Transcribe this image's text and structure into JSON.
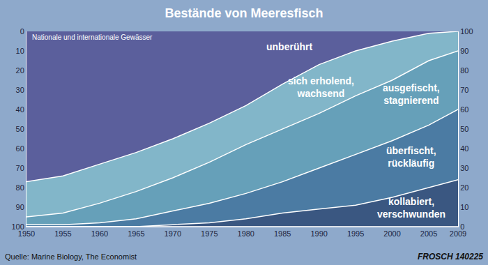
{
  "chart_data": {
    "type": "area",
    "title": "Bestände von Meeresfisch",
    "subtitle": "Nationale und internationale Gewässer",
    "source": "Quelle: Marine Biology, The Economist",
    "credit": "FROSCH 140225",
    "stacked": true,
    "grid": true,
    "x": [
      1950,
      1955,
      1960,
      1965,
      1970,
      1975,
      1980,
      1985,
      1990,
      1995,
      2000,
      2005,
      2009
    ],
    "series": [
      {
        "name": "unberührt",
        "color": "#5b5f9c",
        "values": [
          77,
          74,
          68,
          62,
          55,
          47,
          38,
          27,
          17,
          10,
          5,
          1,
          0
        ]
      },
      {
        "name": "sich erholend, wachsend",
        "color": "#82b6c9",
        "values": [
          18,
          19,
          20,
          20,
          20,
          20,
          20,
          23,
          25,
          23,
          20,
          14,
          10
        ]
      },
      {
        "name": "ausgefischt, stagnierend",
        "color": "#66a0b9",
        "values": [
          4,
          6,
          10,
          14,
          17,
          21,
          25,
          27,
          28,
          30,
          31,
          33,
          30
        ]
      },
      {
        "name": "überfischt, rückläufig",
        "color": "#4b7ba3",
        "values": [
          1,
          1,
          2,
          4,
          7,
          10,
          13,
          16,
          21,
          26,
          29,
          32,
          36
        ]
      },
      {
        "name": "kollabiert, verschwunden",
        "color": "#3a5781",
        "values": [
          0,
          0,
          0,
          0,
          1,
          2,
          4,
          7,
          9,
          11,
          15,
          20,
          24
        ]
      }
    ],
    "xlim": [
      1950,
      2009
    ],
    "xticks": [
      1950,
      1955,
      1960,
      1965,
      1970,
      1975,
      1980,
      1985,
      1990,
      1995,
      2000,
      2005,
      2009
    ],
    "ylim": [
      100,
      0
    ],
    "yticks": [
      0,
      10,
      20,
      30,
      40,
      50,
      60,
      70,
      80,
      90,
      100
    ],
    "y2lim": [
      0,
      100
    ],
    "y2ticks": [
      0,
      10,
      20,
      30,
      40,
      50,
      60,
      70,
      80,
      90,
      100
    ]
  }
}
